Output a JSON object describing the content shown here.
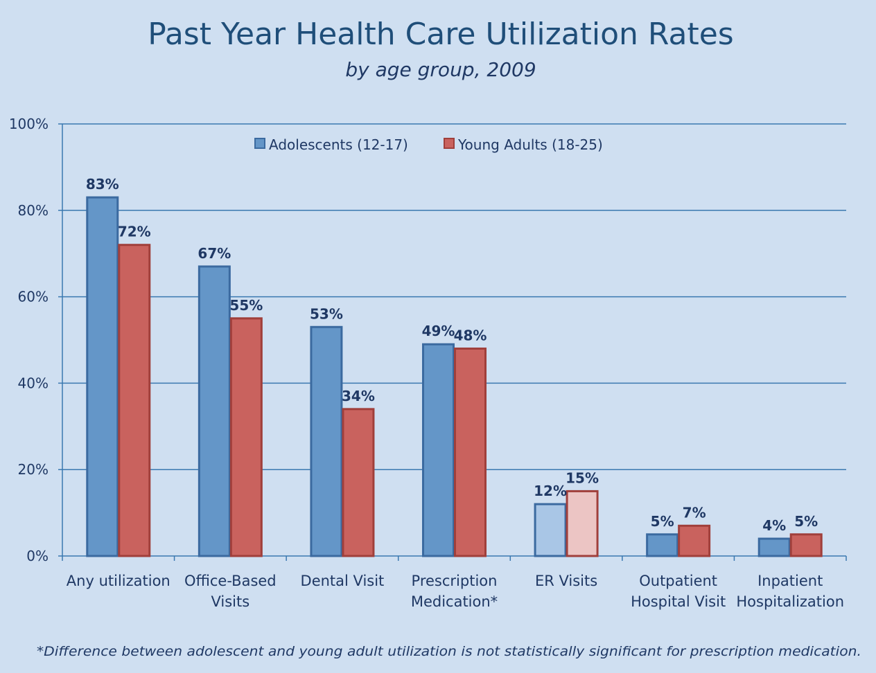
{
  "chart_data": {
    "type": "bar",
    "title": "Past Year Health Care Utilization Rates",
    "subtitle": "by age group, 2009",
    "categories": [
      [
        "Any utilization"
      ],
      [
        "Office-Based",
        "Visits"
      ],
      [
        "Dental Visit"
      ],
      [
        "Prescription",
        "Medication*"
      ],
      [
        "ER Visits"
      ],
      [
        "Outpatient",
        "Hospital Visit"
      ],
      [
        "Inpatient",
        "Hospitalization"
      ]
    ],
    "series": [
      {
        "name": "Adolescents (12-17)",
        "values": [
          83,
          67,
          53,
          49,
          12,
          5,
          4
        ],
        "labels": [
          "83%",
          "67%",
          "53%",
          "49%",
          "12%",
          "5%",
          "4%"
        ],
        "color": "#6496c8",
        "border": "#3b6aa0",
        "highlight_color": "#a9c6e6"
      },
      {
        "name": "Young Adults (18-25)",
        "values": [
          72,
          55,
          34,
          48,
          15,
          7,
          5
        ],
        "labels": [
          "72%",
          "55%",
          "34%",
          "48%",
          "15%",
          "7%",
          "5%"
        ],
        "color": "#c9625e",
        "border": "#a03f3b",
        "highlight_color": "#ecc5c4"
      }
    ],
    "highlighted_category_index": 4,
    "ylim": [
      0,
      100
    ],
    "yticks": [
      "0%",
      "20%",
      "40%",
      "60%",
      "80%",
      "100%"
    ],
    "grid": true,
    "legend_position": "top-center",
    "footnote": "*Difference between adolescent and young adult utilization is not statistically significant for prescription medication."
  }
}
